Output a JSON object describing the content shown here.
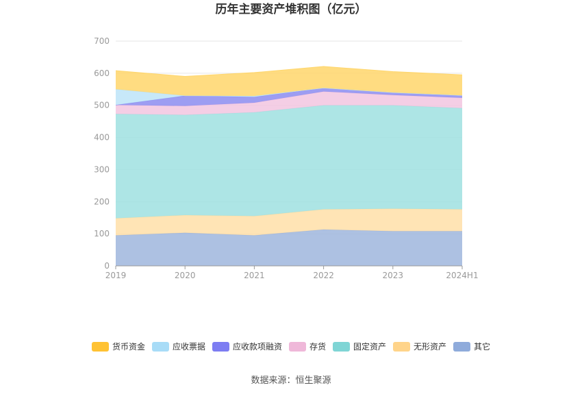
{
  "chart_data": {
    "type": "area",
    "stacked": true,
    "title": "历年主要资产堆积图（亿元）",
    "x": [
      "2019",
      "2020",
      "2021",
      "2022",
      "2023",
      "2024H1"
    ],
    "ylim": [
      0,
      700
    ],
    "yticks": [
      0,
      100,
      200,
      300,
      400,
      500,
      600,
      700
    ],
    "grid": true,
    "legend_position": "bottom",
    "series": [
      {
        "name": "其它",
        "color": "#9fb6dd",
        "values": [
          95,
          103,
          95,
          113,
          108,
          108
        ]
      },
      {
        "name": "无形资产",
        "color": "#ffdfa8",
        "values": [
          53,
          55,
          60,
          63,
          70,
          68
        ]
      },
      {
        "name": "固定资产",
        "color": "#9fe0e0",
        "values": [
          325,
          312,
          323,
          324,
          322,
          315
        ]
      },
      {
        "name": "存货",
        "color": "#f2c6e0",
        "values": [
          28,
          28,
          30,
          43,
          32,
          32
        ]
      },
      {
        "name": "应收款项融资",
        "color": "#8c8cf0",
        "values": [
          0,
          32,
          18,
          11,
          8,
          8
        ]
      },
      {
        "name": "应收票据",
        "color": "#bde4f8",
        "values": [
          49,
          0,
          3,
          0,
          0,
          0
        ]
      },
      {
        "name": "货币资金",
        "color": "#ffd66b",
        "values": [
          58,
          60,
          73,
          67,
          65,
          64
        ]
      }
    ]
  },
  "legend": {
    "items": [
      {
        "label": "货币资金",
        "color": "#ffc233"
      },
      {
        "label": "应收票据",
        "color": "#a8dcf7"
      },
      {
        "label": "应收款项融资",
        "color": "#7d7df2"
      },
      {
        "label": "存货",
        "color": "#efb8d9"
      },
      {
        "label": "固定资产",
        "color": "#7fd5d5"
      },
      {
        "label": "无形资产",
        "color": "#ffd48a"
      },
      {
        "label": "其它",
        "color": "#8fabdb"
      }
    ]
  },
  "source": "数据来源：恒生聚源"
}
